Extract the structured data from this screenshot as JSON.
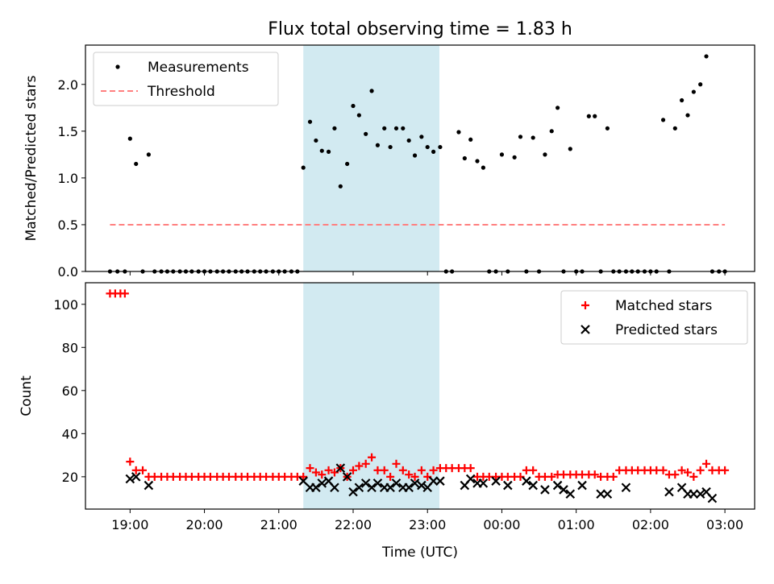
{
  "chart_data": {
    "title": "Flux total observing time = 1.83 h",
    "xlabel": "Time (UTC)",
    "x_ticks": [
      "19:00",
      "20:00",
      "21:00",
      "22:00",
      "23:00",
      "00:00",
      "01:00",
      "02:00",
      "03:00"
    ],
    "shaded_interval": {
      "start_h": 21.33,
      "end_h": 23.16,
      "color": "#add8e6"
    },
    "panels": [
      {
        "type": "scatter",
        "ylabel": "Matched/Predicted stars",
        "ylim": [
          0,
          2.42
        ],
        "y_ticks": [
          "0.0",
          "0.5",
          "1.0",
          "1.5",
          "2.0"
        ],
        "legend_position": "upper-left",
        "series": [
          {
            "name": "Measurements",
            "marker": "dot",
            "color": "#000000",
            "x": [
              18.73,
              18.83,
              18.93,
              19.0,
              19.08,
              19.17,
              19.25,
              19.33,
              19.42,
              19.5,
              19.58,
              19.67,
              19.75,
              19.83,
              19.92,
              20.0,
              20.08,
              20.17,
              20.25,
              20.33,
              20.42,
              20.5,
              20.58,
              20.67,
              20.75,
              20.83,
              20.92,
              21.0,
              21.08,
              21.17,
              21.25,
              21.33,
              21.42,
              21.5,
              21.58,
              21.67,
              21.75,
              21.83,
              21.92,
              22.0,
              22.08,
              22.17,
              22.25,
              22.33,
              22.42,
              22.5,
              22.58,
              22.67,
              22.75,
              22.83,
              22.92,
              23.0,
              23.08,
              23.17,
              23.25,
              23.33,
              23.42,
              23.5,
              23.58,
              23.67,
              23.75,
              23.83,
              23.92,
              24.0,
              24.08,
              24.17,
              24.25,
              24.33,
              24.42,
              24.5,
              24.58,
              24.67,
              24.75,
              24.83,
              24.92,
              25.0,
              25.08,
              25.17,
              25.25,
              25.33,
              25.42,
              25.5,
              25.58,
              25.67,
              25.75,
              25.83,
              25.92,
              26.0,
              26.08,
              26.17,
              26.25,
              26.33,
              26.42,
              26.5,
              26.58,
              26.67,
              26.75,
              26.83,
              26.92,
              27.0
            ],
            "y": [
              0,
              0,
              0,
              1.42,
              1.15,
              0,
              1.25,
              0,
              0,
              0,
              0,
              0,
              0,
              0,
              0,
              0,
              0,
              0,
              0,
              0,
              0,
              0,
              0,
              0,
              0,
              0,
              0,
              0,
              0,
              0,
              0,
              1.11,
              1.6,
              1.4,
              1.29,
              1.28,
              1.53,
              0.91,
              1.15,
              1.77,
              1.67,
              1.47,
              1.93,
              1.35,
              1.53,
              1.33,
              1.53,
              1.53,
              1.4,
              1.24,
              1.44,
              1.33,
              1.28,
              1.33,
              0,
              0,
              1.49,
              1.21,
              1.41,
              1.18,
              1.11,
              0,
              0,
              1.25,
              0,
              1.22,
              1.44,
              0,
              1.43,
              0,
              1.25,
              1.5,
              1.75,
              0,
              1.31,
              0,
              0,
              1.66,
              1.66,
              0,
              1.53,
              0,
              0,
              0,
              0,
              0,
              0,
              0,
              0,
              1.62,
              0,
              1.53,
              1.83,
              1.67,
              1.92,
              2.0,
              2.3,
              0,
              0,
              0
            ]
          },
          {
            "name": "Threshold",
            "line": "dashed",
            "color": "#ff7f7f",
            "x": [
              18.73,
              27.0
            ],
            "y": [
              0.5,
              0.5
            ]
          }
        ]
      },
      {
        "type": "scatter",
        "ylabel": "Count",
        "ylim": [
          5,
          110
        ],
        "y_ticks": [
          "20",
          "40",
          "60",
          "80",
          "100"
        ],
        "legend_position": "upper-right",
        "series": [
          {
            "name": "Matched stars",
            "marker": "plus",
            "color": "#ff0000",
            "x": [
              18.73,
              18.8,
              18.87,
              18.93,
              19.0,
              19.08,
              19.17,
              19.25,
              19.33,
              19.42,
              19.5,
              19.58,
              19.67,
              19.75,
              19.83,
              19.92,
              20.0,
              20.08,
              20.17,
              20.25,
              20.33,
              20.42,
              20.5,
              20.58,
              20.67,
              20.75,
              20.83,
              20.92,
              21.0,
              21.08,
              21.17,
              21.25,
              21.33,
              21.42,
              21.5,
              21.58,
              21.67,
              21.75,
              21.83,
              21.92,
              22.0,
              22.08,
              22.17,
              22.25,
              22.33,
              22.42,
              22.5,
              22.58,
              22.67,
              22.75,
              22.83,
              22.92,
              23.0,
              23.08,
              23.17,
              23.25,
              23.33,
              23.42,
              23.5,
              23.58,
              23.67,
              23.75,
              23.83,
              23.92,
              24.0,
              24.08,
              24.17,
              24.25,
              24.33,
              24.42,
              24.5,
              24.58,
              24.67,
              24.75,
              24.83,
              24.92,
              25.0,
              25.08,
              25.17,
              25.25,
              25.33,
              25.42,
              25.5,
              25.58,
              25.67,
              25.75,
              25.83,
              25.92,
              26.0,
              26.08,
              26.17,
              26.25,
              26.33,
              26.42,
              26.5,
              26.58,
              26.67,
              26.75,
              26.83,
              26.92,
              27.0
            ],
            "y": [
              105,
              105,
              105,
              105,
              27,
              23,
              23,
              20,
              20,
              20,
              20,
              20,
              20,
              20,
              20,
              20,
              20,
              20,
              20,
              20,
              20,
              20,
              20,
              20,
              20,
              20,
              20,
              20,
              20,
              20,
              20,
              20,
              20,
              24,
              22,
              21,
              23,
              22,
              24,
              20,
              23,
              25,
              26,
              29,
              23,
              23,
              20,
              26,
              23,
              21,
              20,
              23,
              20,
              23,
              24,
              24,
              24,
              24,
              24,
              24,
              20,
              20,
              20,
              20,
              20,
              20,
              20,
              20,
              23,
              23,
              20,
              20,
              20,
              21,
              21,
              21,
              21,
              21,
              21,
              21,
              20,
              20,
              20,
              23,
              23,
              23,
              23,
              23,
              23,
              23,
              23,
              21,
              21,
              23,
              22,
              20,
              23,
              26,
              23,
              23,
              23
            ]
          },
          {
            "name": "Predicted stars",
            "marker": "x",
            "color": "#000000",
            "x": [
              19.0,
              19.08,
              19.25,
              21.33,
              21.42,
              21.5,
              21.58,
              21.67,
              21.75,
              21.83,
              21.92,
              22.0,
              22.08,
              22.17,
              22.25,
              22.33,
              22.42,
              22.5,
              22.58,
              22.67,
              22.75,
              22.83,
              22.92,
              23.0,
              23.08,
              23.17,
              23.5,
              23.58,
              23.67,
              23.75,
              23.92,
              24.08,
              24.33,
              24.42,
              24.58,
              24.75,
              24.83,
              24.92,
              25.08,
              25.33,
              25.42,
              25.67,
              26.25,
              26.42,
              26.5,
              26.58,
              26.67,
              26.75,
              26.83
            ],
            "y": [
              19,
              20,
              16,
              18,
              15,
              15,
              17,
              18,
              15,
              24,
              20,
              13,
              15,
              17,
              15,
              17,
              15,
              15,
              17,
              15,
              15,
              17,
              16,
              15,
              18,
              18,
              16,
              19,
              17,
              17,
              18,
              16,
              18,
              16,
              14,
              16,
              14,
              12,
              16,
              12,
              12,
              15,
              13,
              15,
              12,
              12,
              12,
              13,
              10
            ]
          }
        ]
      }
    ]
  }
}
